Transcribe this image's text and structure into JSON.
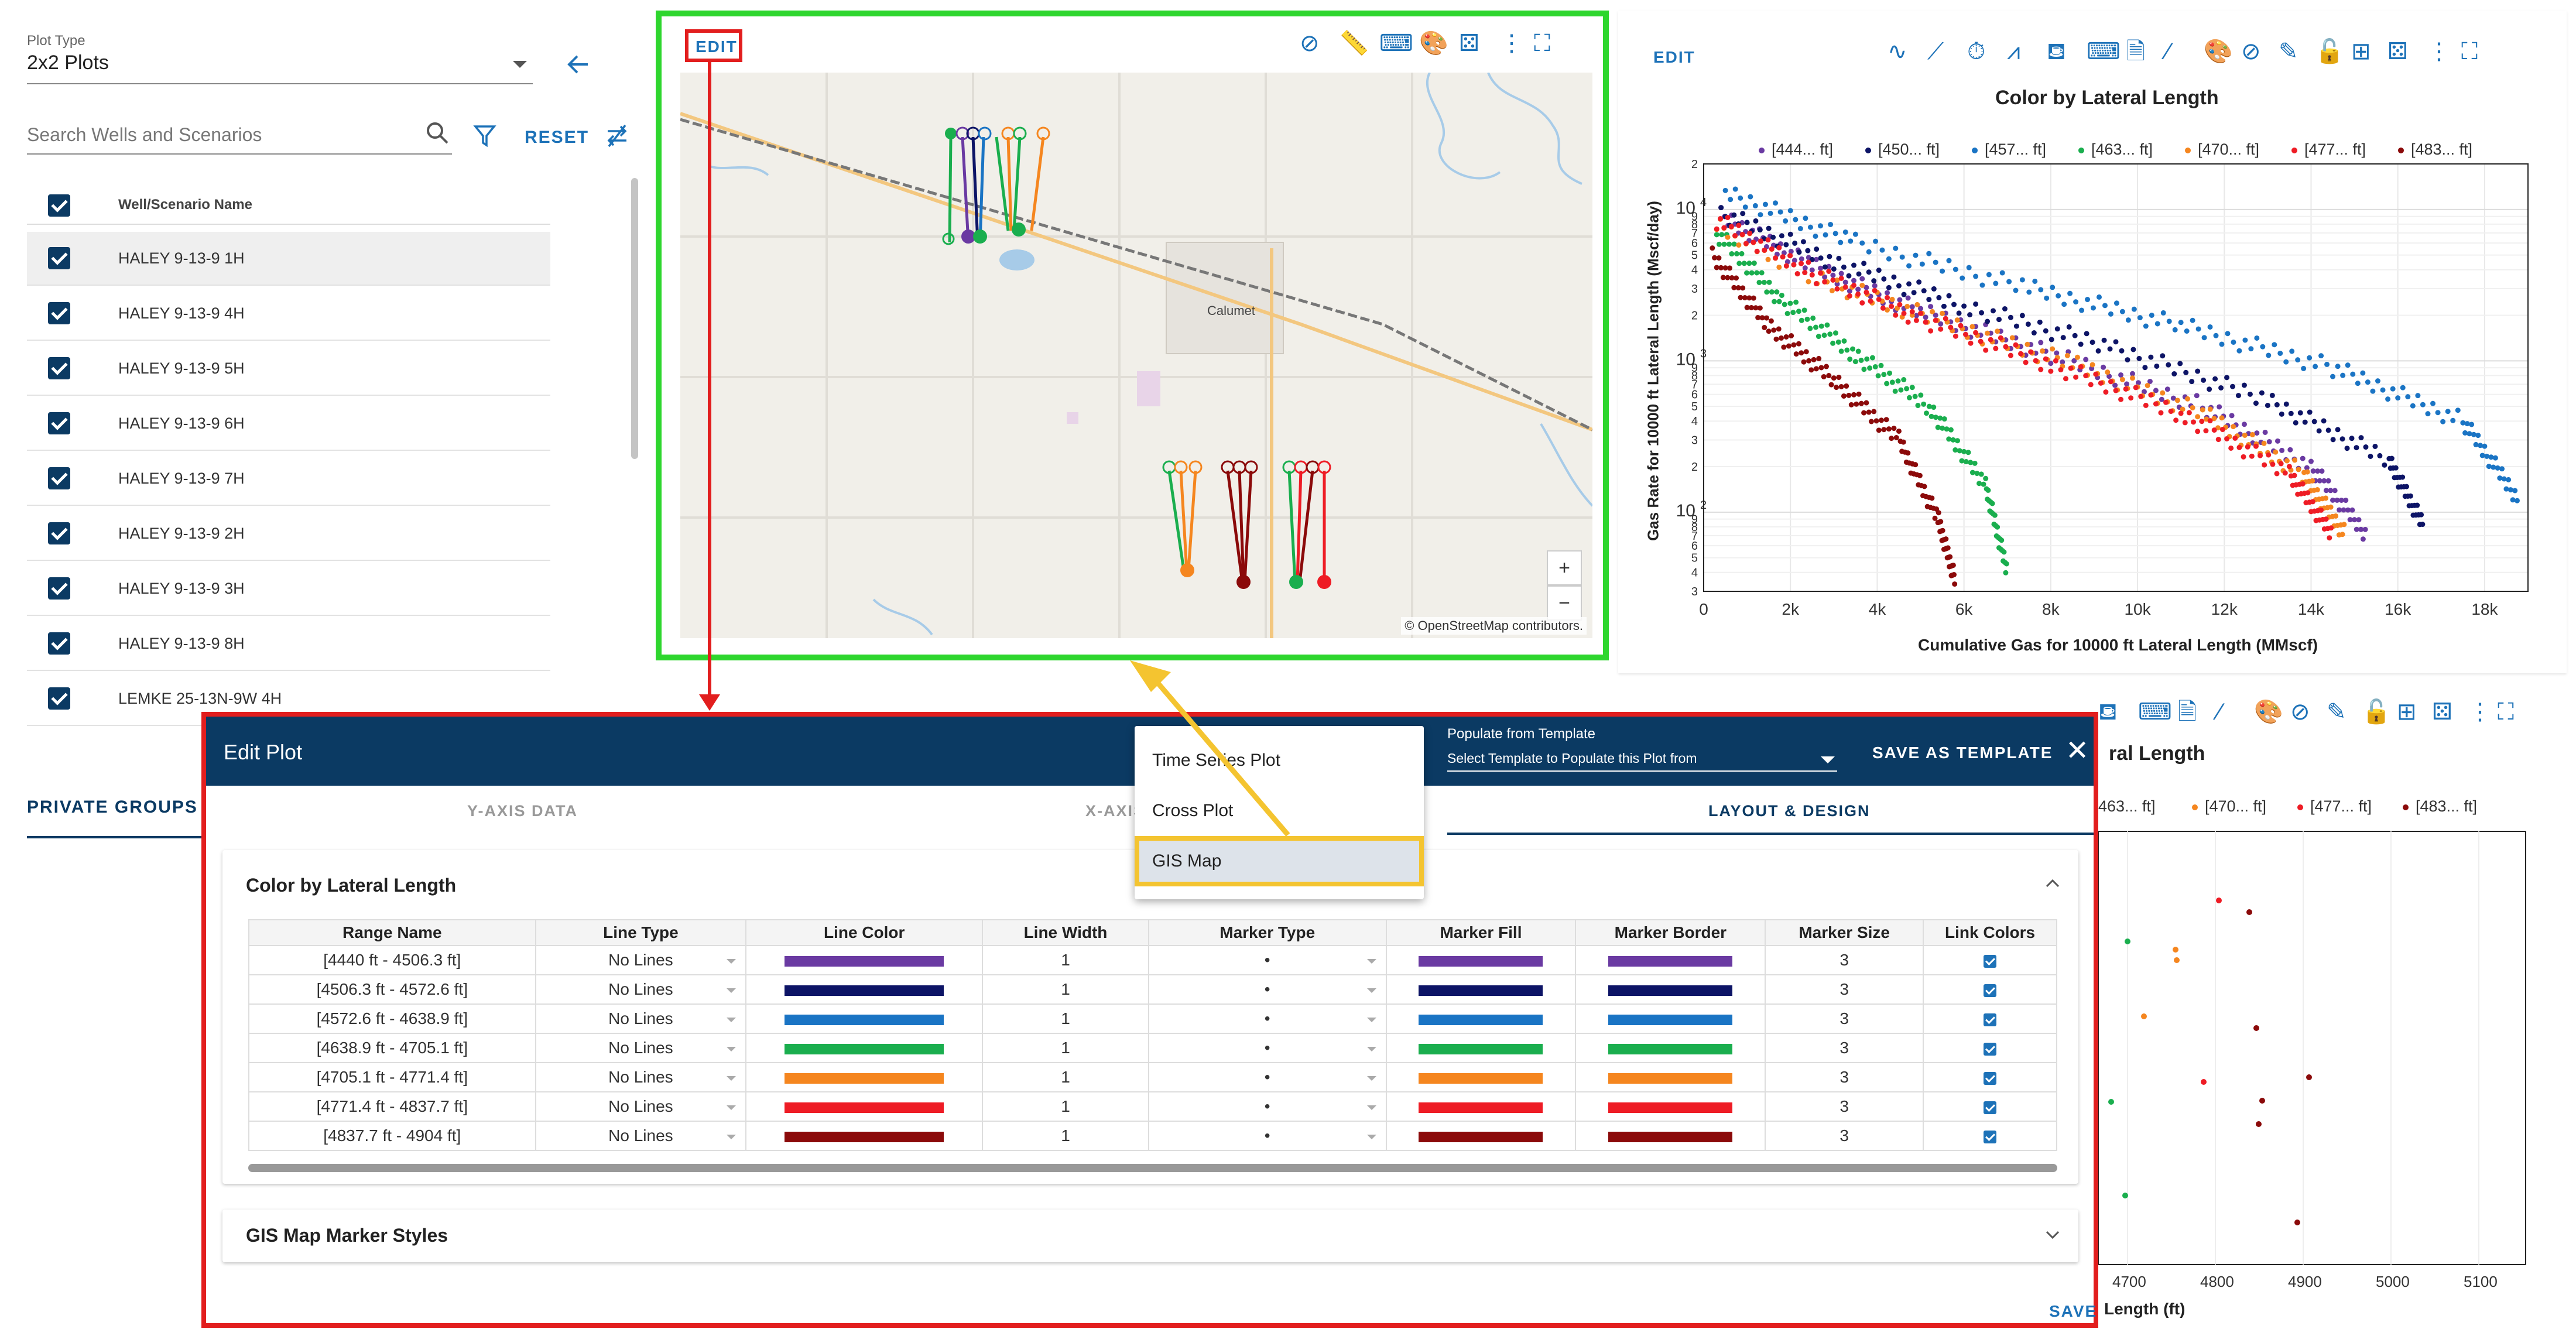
{
  "sidebar": {
    "plot_type_label": "Plot Type",
    "plot_type_value": "2x2 Plots",
    "search_placeholder": "Search Wells and Scenarios",
    "reset_label": "RESET",
    "column_header": "Well/Scenario Name",
    "wells": [
      "HALEY 9-13-9 1H",
      "HALEY 9-13-9 4H",
      "HALEY 9-13-9 5H",
      "HALEY 9-13-9 6H",
      "HALEY 9-13-9 7H",
      "HALEY 9-13-9 2H",
      "HALEY 9-13-9 3H",
      "HALEY 9-13-9 8H",
      "LEMKE 25-13N-9W 4H"
    ],
    "private_groups_label": "PRIVATE GROUPS"
  },
  "map_panel": {
    "edit_label": "EDIT",
    "town_label": "Calumet",
    "credit": "© OpenStreetMap contributors.",
    "zoom_in": "+",
    "zoom_out": "−"
  },
  "chart_panel": {
    "edit_label": "EDIT"
  },
  "lower_panel": {
    "title_fragment": "ral Length",
    "legend_fragment": [
      "463... ft]",
      "[470... ft]",
      "[477... ft]",
      "[483... ft]"
    ],
    "xlabel_fragment": "Length (ft)",
    "xticks": [
      "4700",
      "4800",
      "4900",
      "5000",
      "5100"
    ]
  },
  "modal": {
    "title": "Edit Plot",
    "template_label": "Populate from Template",
    "template_placeholder": "Select Template to Populate this Plot from",
    "save_template_label": "SAVE AS TEMPLATE",
    "close_label": "✕",
    "tabs": [
      "Y-AXIS DATA",
      "X-AXIS",
      "LAYOUT & DESIGN"
    ],
    "section_color_title": "Color by Lateral Length",
    "section_gis_title": "GIS Map Marker Styles",
    "save_label": "SAVE",
    "columns": [
      "Range Name",
      "Line Type",
      "Line Color",
      "Line Width",
      "Marker Type",
      "Marker Fill",
      "Marker Border",
      "Marker Size",
      "Link Colors"
    ],
    "rows": [
      {
        "range": "[4440 ft - 4506.3 ft]",
        "line_type": "No Lines",
        "color": "#6a3aa2",
        "width": "1",
        "marker": "•",
        "size": "3"
      },
      {
        "range": "[4506.3 ft - 4572.6 ft]",
        "line_type": "No Lines",
        "color": "#0d1466",
        "width": "1",
        "marker": "•",
        "size": "3"
      },
      {
        "range": "[4572.6 ft - 4638.9 ft]",
        "line_type": "No Lines",
        "color": "#1a74c4",
        "width": "1",
        "marker": "•",
        "size": "3"
      },
      {
        "range": "[4638.9 ft - 4705.1 ft]",
        "line_type": "No Lines",
        "color": "#1aae4e",
        "width": "1",
        "marker": "•",
        "size": "3"
      },
      {
        "range": "[4705.1 ft - 4771.4 ft]",
        "line_type": "No Lines",
        "color": "#f5861f",
        "width": "1",
        "marker": "•",
        "size": "3"
      },
      {
        "range": "[4771.4 ft - 4837.7 ft]",
        "line_type": "No Lines",
        "color": "#ee1c25",
        "width": "1",
        "marker": "•",
        "size": "3"
      },
      {
        "range": "[4837.7 ft - 4904 ft]",
        "line_type": "No Lines",
        "color": "#8b0a0a",
        "width": "1",
        "marker": "•",
        "size": "3"
      }
    ]
  },
  "plot_menu": {
    "items": [
      "Time Series Plot",
      "Cross Plot",
      "GIS Map"
    ],
    "selected": "GIS Map"
  },
  "chart_data": {
    "type": "scatter",
    "title": "Color by Lateral Length",
    "xlabel": "Cumulative Gas for 10000 ft Lateral Length (MMscf)",
    "ylabel": "Gas Rate for 10000 ft Lateral Length (Mscf/day)",
    "xlim": [
      0,
      19000
    ],
    "ylim": [
      30,
      20000
    ],
    "y_scale": "log",
    "x_ticks": [
      "0",
      "2k",
      "4k",
      "6k",
      "8k",
      "10k",
      "12k",
      "14k",
      "16k",
      "18k"
    ],
    "legend_placement": "top",
    "series": [
      {
        "name": "[444... ft]",
        "color": "#6a3aa2",
        "x": [
          400,
          2500,
          5000,
          8000,
          11500,
          14000,
          15300
        ],
        "y": [
          9000,
          4200,
          2100,
          1100,
          500,
          200,
          70
        ]
      },
      {
        "name": "[450... ft]",
        "color": "#0d1466",
        "x": [
          400,
          3000,
          6000,
          9500,
          13000,
          15800,
          16600
        ],
        "y": [
          9500,
          4500,
          2300,
          1200,
          550,
          220,
          80
        ]
      },
      {
        "name": "[457... ft]",
        "color": "#1a74c4",
        "x": [
          500,
          3500,
          7500,
          11000,
          14500,
          17500,
          18800
        ],
        "y": [
          13000,
          6000,
          3000,
          1700,
          900,
          400,
          120
        ]
      },
      {
        "name": "[463... ft]",
        "color": "#1aae4e",
        "x": [
          300,
          1800,
          3500,
          5200,
          6500,
          7000
        ],
        "y": [
          7000,
          2500,
          1100,
          500,
          150,
          40
        ]
      },
      {
        "name": "[470... ft]",
        "color": "#f5861f",
        "x": [
          300,
          2500,
          5500,
          8500,
          11500,
          13800,
          14800
        ],
        "y": [
          8000,
          3600,
          1800,
          950,
          450,
          180,
          70
        ]
      },
      {
        "name": "[477... ft]",
        "color": "#ee1c25",
        "x": [
          300,
          2500,
          5000,
          8000,
          11000,
          13500,
          14500
        ],
        "y": [
          8500,
          3800,
          1900,
          950,
          450,
          180,
          70
        ]
      },
      {
        "name": "[483... ft]",
        "color": "#8b0a0a",
        "x": [
          200,
          1500,
          3000,
          4500,
          5400,
          5800
        ],
        "y": [
          5000,
          1700,
          750,
          300,
          90,
          35
        ]
      }
    ]
  }
}
